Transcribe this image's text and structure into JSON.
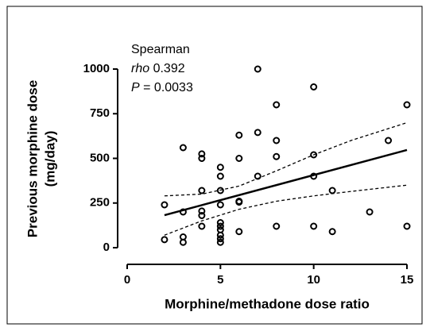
{
  "chart_data": {
    "type": "scatter",
    "annotation": {
      "title": "Spearman",
      "rho_label": "rho",
      "rho": "0.392",
      "p_label": "P",
      "p": "= 0.0033"
    },
    "y_label": [
      "Previous morphine dose",
      "(mg/day)"
    ],
    "x_label": "Morphine/methadone dose ratio",
    "xlim": [
      0,
      15
    ],
    "xticks": [
      0,
      5,
      10,
      15
    ],
    "ylim": [
      0,
      1000
    ],
    "yticks": [
      0,
      250,
      500,
      750,
      1000
    ],
    "series": [
      {
        "x": [
          2,
          2,
          3,
          3,
          3,
          3,
          4,
          4,
          4,
          4,
          4,
          4,
          5,
          5,
          5,
          5,
          5,
          5,
          5,
          5,
          5,
          5,
          6,
          6,
          6,
          6,
          6,
          7,
          7,
          7,
          8,
          8,
          8,
          8,
          10,
          10,
          10,
          10,
          11,
          11,
          13,
          14,
          15,
          15
        ],
        "values": [
          240,
          45,
          560,
          200,
          60,
          30,
          525,
          500,
          320,
          205,
          180,
          120,
          450,
          400,
          320,
          240,
          140,
          120,
          100,
          70,
          50,
          30,
          630,
          500,
          260,
          255,
          90,
          1000,
          645,
          400,
          800,
          600,
          510,
          120,
          900,
          520,
          400,
          120,
          320,
          90,
          200,
          600,
          800,
          120
        ]
      }
    ],
    "lines": [
      {
        "style": "solid",
        "x": [
          2,
          15
        ],
        "values": [
          182,
          547
        ]
      },
      {
        "style": "dashed",
        "x": [
          2,
          4,
          6,
          8,
          10,
          12,
          15
        ],
        "values": [
          290,
          300,
          345,
          430,
          520,
          600,
          700
        ]
      },
      {
        "style": "dashed",
        "x": [
          2,
          4,
          6,
          8,
          10,
          12,
          15
        ],
        "values": [
          70,
          150,
          215,
          260,
          290,
          315,
          350
        ]
      }
    ]
  }
}
